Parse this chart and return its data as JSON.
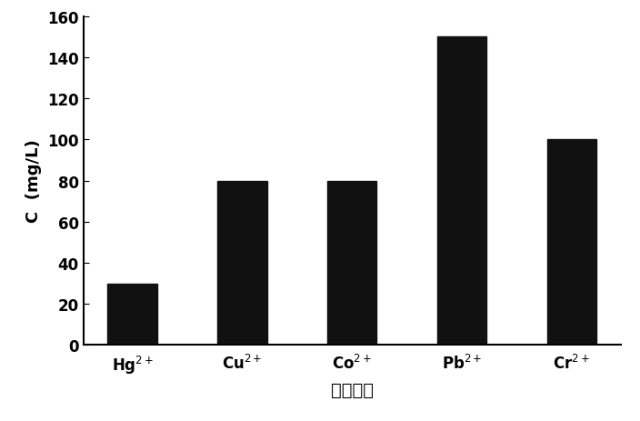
{
  "categories_math": [
    "Hg$^{2+}$",
    "Cu$^{2+}$",
    "Co$^{2+}$",
    "Pb$^{2+}$",
    "Cr$^{2+}$"
  ],
  "values": [
    30,
    80,
    80,
    150,
    100
  ],
  "bar_color": "#111111",
  "ylabel": "C  (mg/L)",
  "xlabel": "金属离子",
  "ylim": [
    0,
    160
  ],
  "yticks": [
    0,
    20,
    40,
    60,
    80,
    100,
    120,
    140,
    160
  ],
  "bar_width": 0.45,
  "background_color": "#ffffff",
  "ylabel_fontsize": 13,
  "xlabel_fontsize": 14,
  "tick_fontsize": 12
}
